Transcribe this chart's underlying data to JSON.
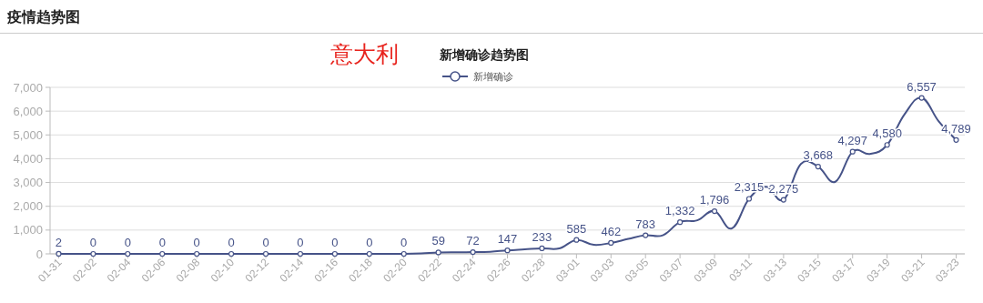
{
  "chart_data": {
    "type": "line",
    "title": "新增确诊趋势图",
    "annotations": [
      "疫情趋势图",
      "意大利"
    ],
    "categories": [
      "01-31",
      null,
      "02-02",
      null,
      "02-04",
      null,
      "02-06",
      null,
      "02-08",
      null,
      "02-10",
      null,
      "02-12",
      null,
      "02-14",
      null,
      "02-16",
      null,
      "02-18",
      null,
      "02-20",
      null,
      "02-22",
      null,
      "02-24",
      null,
      "02-26",
      null,
      "02-28",
      null,
      "03-01",
      null,
      "03-03",
      null,
      "03-05",
      null,
      "03-07",
      null,
      "03-09",
      null,
      "03-11",
      null,
      "03-13",
      null,
      "03-15",
      null,
      "03-17",
      null,
      "03-19",
      null,
      "03-21",
      null,
      "03-23"
    ],
    "series": [
      {
        "name": "新增确诊",
        "color": "#465388",
        "values": [
          2,
          0,
          0,
          0,
          0,
          0,
          0,
          0,
          0,
          0,
          0,
          0,
          0,
          0,
          0,
          0,
          0,
          0,
          0,
          0,
          0,
          20,
          59,
          70,
          72,
          90,
          147,
          190,
          233,
          230,
          585,
          380,
          462,
          630,
          783,
          780,
          1332,
          1410,
          1796,
          1070,
          2315,
          2820,
          2275,
          3780,
          3668,
          3030,
          4297,
          4200,
          4580,
          5860,
          6557,
          5560,
          4789
        ],
        "value_labels": [
          "2",
          null,
          "0",
          null,
          "0",
          null,
          "0",
          null,
          "0",
          null,
          "0",
          null,
          "0",
          null,
          "0",
          null,
          "0",
          null,
          "0",
          null,
          "0",
          null,
          "59",
          null,
          "72",
          null,
          "147",
          null,
          "233",
          null,
          "585",
          null,
          "462",
          null,
          "783",
          null,
          "1,332",
          null,
          "1,796",
          null,
          "2,315",
          null,
          "2,275",
          null,
          "3,668",
          null,
          "4,297",
          null,
          "4,580",
          null,
          "6,557",
          null,
          "4,789"
        ]
      }
    ],
    "ylim": [
      0,
      7000
    ],
    "yticks": [
      0,
      {
        "value": 1000,
        "label": "1,000"
      },
      {
        "value": 2000,
        "label": "2,000"
      },
      {
        "value": 3000,
        "label": "3,000"
      },
      {
        "value": 4000,
        "label": "4,000"
      },
      {
        "value": 5000,
        "label": "5,000"
      },
      {
        "value": 6000,
        "label": "6,000"
      },
      {
        "value": 7000,
        "label": "7,000"
      }
    ],
    "grid": "y",
    "legend": "top",
    "marker": "circle"
  }
}
